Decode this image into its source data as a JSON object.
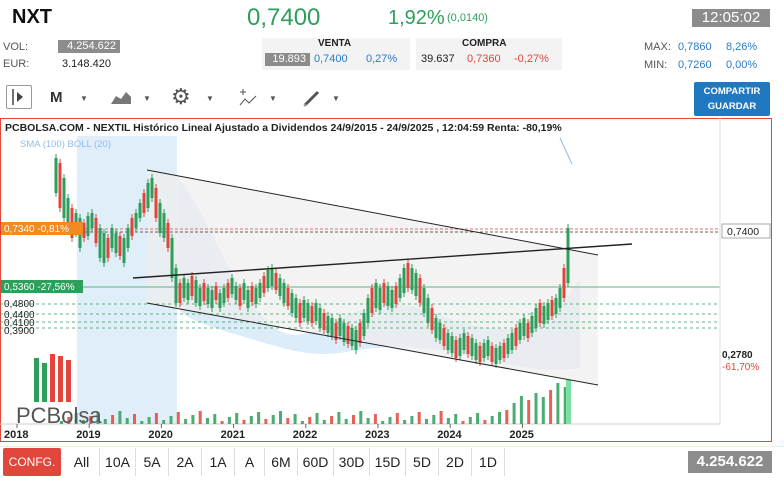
{
  "header": {
    "symbol": "NXT",
    "price": "0,7400",
    "change_pct": "1,92%",
    "change_abs": "(0,0140)",
    "time": "12:05:02",
    "vol_label": "VOL:",
    "vol_value": "4.254.622",
    "eur_label": "EUR:",
    "eur_value": "3.148.420",
    "venta_label": "VENTA",
    "venta_qty": "19.893",
    "venta_price": "0,7400",
    "venta_pct": "0,27%",
    "compra_label": "COMPRA",
    "compra_qty": "39.637",
    "compra_price": "0,7360",
    "compra_pct": "-0,27%",
    "max_label": "MAX:",
    "max_value": "0,7860",
    "max_pct": "8,26%",
    "min_label": "MIN:",
    "min_value": "0,7260",
    "min_pct": "0,00%"
  },
  "toolbar": {
    "period": "M",
    "share_line1": "COMPARTIR",
    "share_line2": "GUARDAR"
  },
  "chart_data": {
    "type": "candlestick",
    "title": "PCBOLSA.COM - NEXTIL Histórico Lineal Ajustado a Dividendos 24/9/2015 - 24/9/2025 , 12:04:59 Renta: -80,19%",
    "indicators": "SMA (100)  BOLL (20)",
    "x_ticks": [
      "2018",
      "2019",
      "2020",
      "2021",
      "2022",
      "2023",
      "2024",
      "2025"
    ],
    "price_labels": [
      {
        "text": "0,7340  -0,81%",
        "color": "#f08a24"
      },
      {
        "text": "0,5360  -27,56%",
        "color": "#2e9e5b"
      },
      {
        "text": "0,4800"
      },
      {
        "text": "0,4400"
      },
      {
        "text": "0,4100"
      },
      {
        "text": "0,3900"
      }
    ],
    "right_labels": {
      "last": "0,7400",
      "low": "0,2780",
      "low_pct": "-61,70%"
    },
    "logo": "PCBolsa"
  },
  "periods": [
    "All",
    "10A",
    "5A",
    "2A",
    "1A",
    "A",
    "6M",
    "60D",
    "30D",
    "15D",
    "5D",
    "2D",
    "1D"
  ],
  "config_label": "CONFG.",
  "volume_total": "4.254.622"
}
